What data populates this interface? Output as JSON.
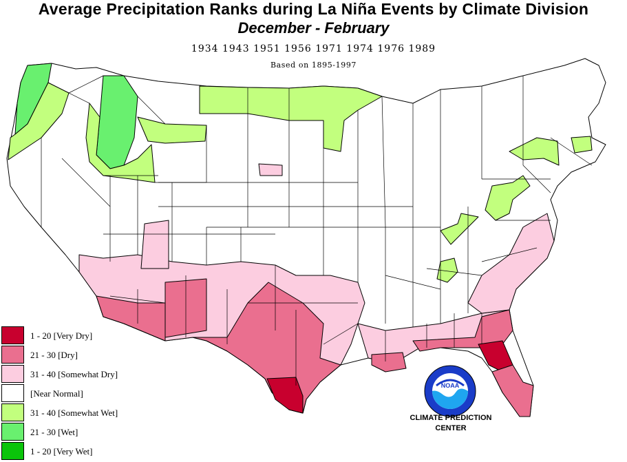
{
  "title": "Average Precipitation Ranks during La  Niña Events by Climate Division",
  "subtitle": "December  -  February",
  "years": "1934  1943  1951  1956  1971  1974  1976  1989",
  "basis": "Based on 1895-1997",
  "colors": {
    "very_dry": "#c8002e",
    "dry": "#ea6f8f",
    "somewhat_dry": "#fccde0",
    "near_normal": "#ffffff",
    "somewhat_wet": "#c2ff7e",
    "wet": "#69f06f",
    "very_wet": "#0ac40a",
    "border": "#000000"
  },
  "legend": [
    {
      "label": "1 - 20 [Very Dry]",
      "color": "#c8002e"
    },
    {
      "label": "21 - 30 [Dry]",
      "color": "#ea6f8f"
    },
    {
      "label": "31 - 40 [Somewhat Dry]",
      "color": "#fccde0"
    },
    {
      "label": " [Near Normal]",
      "color": "#ffffff"
    },
    {
      "label": "31 - 40 [Somewhat Wet]",
      "color": "#c2ff7e"
    },
    {
      "label": "21 - 30 [Wet]",
      "color": "#69f06f"
    },
    {
      "label": "1 - 20 [Very Wet]",
      "color": "#0ac40a"
    }
  ],
  "cpc": {
    "line1": "CLIMATE PREDICTION",
    "line2": "CENTER"
  },
  "logo": {
    "text": "NOAA",
    "ring_text": "NATIONAL OCEANIC AND ATMOSPHERIC ADMINISTRATION"
  }
}
